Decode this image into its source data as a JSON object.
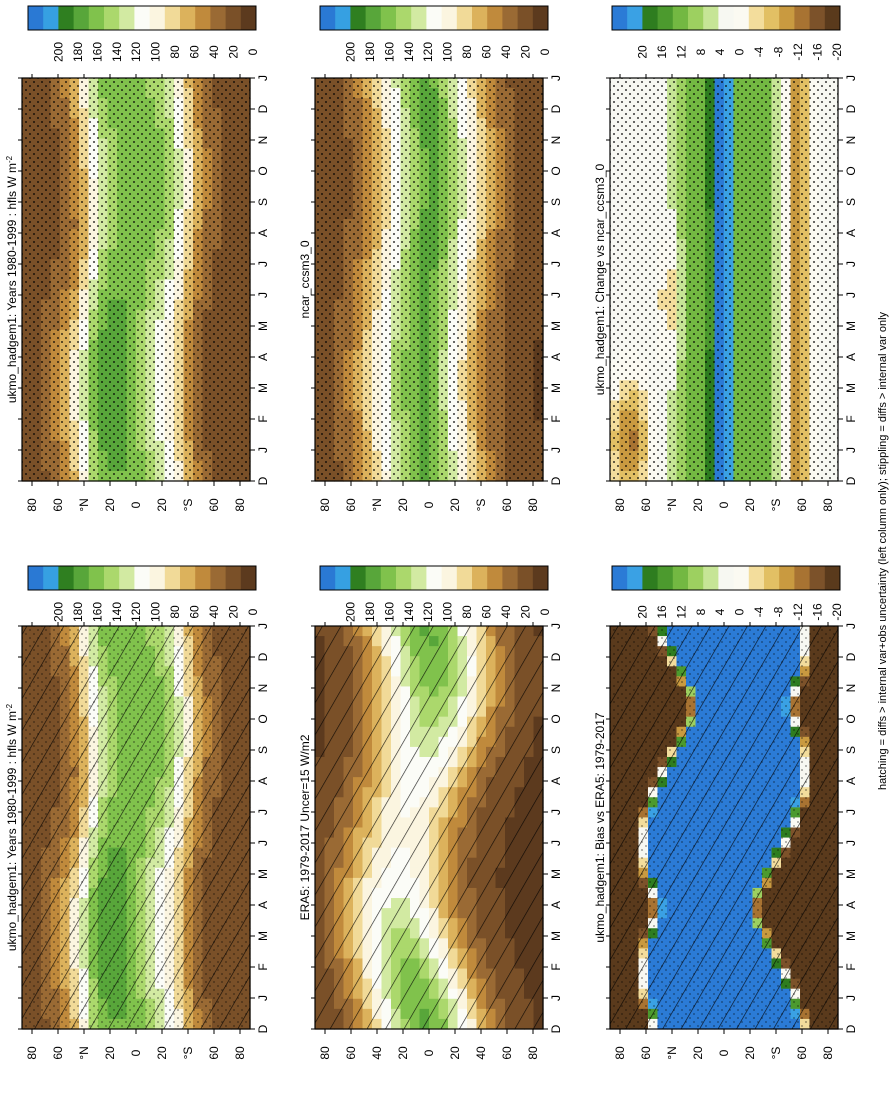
{
  "footer_note": "hatching = diffs > internal var+obs uncertainty (left column only); stippling = diffs > internal var only",
  "chart_data": [
    {
      "type": "heatmap",
      "title": "ukmo_hadgem1: Years 1980-1999 : hfls W m",
      "title_superscript": "-2",
      "kind": "abs",
      "mode": "ukmo",
      "hatch": "left",
      "stipple": "some",
      "x_ticks": [
        "D",
        "J",
        "F",
        "M",
        "A",
        "M",
        "J",
        "J",
        "A",
        "S",
        "O",
        "N",
        "D",
        "J"
      ],
      "y_ticks": [
        "80",
        "60",
        "°N",
        "20",
        "0",
        "20",
        "°S",
        "60",
        "80"
      ],
      "ylim": [
        -90,
        90
      ],
      "colorbar_labels": [
        "200",
        "180",
        "160",
        "140",
        "120",
        "100",
        "80",
        "60",
        "40",
        "20",
        "0"
      ]
    },
    {
      "type": "heatmap",
      "title": "ukmo_hadgem1: Years 1980-1999 : hfls W m",
      "title_superscript": "-2",
      "kind": "abs",
      "mode": "ukmo",
      "hatch": "none",
      "stipple": "dense",
      "x_ticks": [
        "D",
        "J",
        "F",
        "M",
        "A",
        "M",
        "J",
        "J",
        "A",
        "S",
        "O",
        "N",
        "D",
        "J"
      ],
      "y_ticks": [
        "80",
        "60",
        "°N",
        "20",
        "0",
        "20",
        "°S",
        "60",
        "80"
      ],
      "ylim": [
        -90,
        90
      ],
      "colorbar_labels": [
        "200",
        "180",
        "160",
        "140",
        "120",
        "100",
        "80",
        "60",
        "40",
        "20",
        "0"
      ]
    },
    {
      "type": "heatmap",
      "title": "ERA5: 1979-2017 Uncer=15 W/m2",
      "title_superscript": "",
      "kind": "abs",
      "mode": "era5",
      "hatch": "all",
      "stipple": "none",
      "x_ticks": [
        "D",
        "J",
        "F",
        "M",
        "A",
        "M",
        "J",
        "J",
        "A",
        "S",
        "O",
        "N",
        "D",
        "J"
      ],
      "y_ticks": [
        "80",
        "60",
        "40",
        "20",
        "0",
        "20",
        "40",
        "60",
        "80"
      ],
      "ylim": [
        -90,
        90
      ],
      "colorbar_labels": [
        "200",
        "180",
        "160",
        "140",
        "120",
        "100",
        "80",
        "60",
        "40",
        "20",
        "0"
      ]
    },
    {
      "type": "heatmap",
      "title": "ncar_ccsm3_0",
      "title_superscript": "",
      "kind": "abs",
      "mode": "ncar",
      "hatch": "none",
      "stipple": "dense",
      "x_ticks": [
        "D",
        "J",
        "F",
        "M",
        "A",
        "M",
        "J",
        "J",
        "A",
        "S",
        "O",
        "N",
        "D",
        "J"
      ],
      "y_ticks": [
        "80",
        "60",
        "°N",
        "20",
        "0",
        "20",
        "°S",
        "60",
        "80"
      ],
      "ylim": [
        -90,
        90
      ],
      "colorbar_labels": [
        "200",
        "180",
        "160",
        "140",
        "120",
        "100",
        "80",
        "60",
        "40",
        "20",
        "0"
      ]
    },
    {
      "type": "heatmap",
      "title": "ukmo_hadgem1: Bias vs ERA5: 1979-2017",
      "title_superscript": "",
      "kind": "diff",
      "mode": "bias",
      "hatch": "left",
      "stipple": "some",
      "x_ticks": [
        "D",
        "J",
        "F",
        "M",
        "A",
        "M",
        "J",
        "J",
        "A",
        "S",
        "O",
        "N",
        "D",
        "J"
      ],
      "y_ticks": [
        "80",
        "60",
        "°N",
        "20",
        "0",
        "20",
        "°S",
        "60",
        "80"
      ],
      "ylim": [
        -90,
        90
      ],
      "colorbar_labels": [
        "20",
        "16",
        "12",
        "8",
        "4",
        "0",
        "-4",
        "-8",
        "-12",
        "-16",
        "-20"
      ]
    },
    {
      "type": "heatmap",
      "title": "ukmo_hadgem1: Change vs ncar_ccsm3_0",
      "title_superscript": "",
      "kind": "diff",
      "mode": "change",
      "hatch": "none",
      "stipple": "dense",
      "x_ticks": [
        "D",
        "J",
        "F",
        "M",
        "A",
        "M",
        "J",
        "J",
        "A",
        "S",
        "O",
        "N",
        "D",
        "J"
      ],
      "y_ticks": [
        "80",
        "60",
        "°N",
        "20",
        "0",
        "20",
        "°S",
        "60",
        "80"
      ],
      "ylim": [
        -90,
        90
      ],
      "colorbar_labels": [
        "20",
        "16",
        "12",
        "8",
        "4",
        "0",
        "-4",
        "-8",
        "-12",
        "-16",
        "-20"
      ]
    }
  ]
}
